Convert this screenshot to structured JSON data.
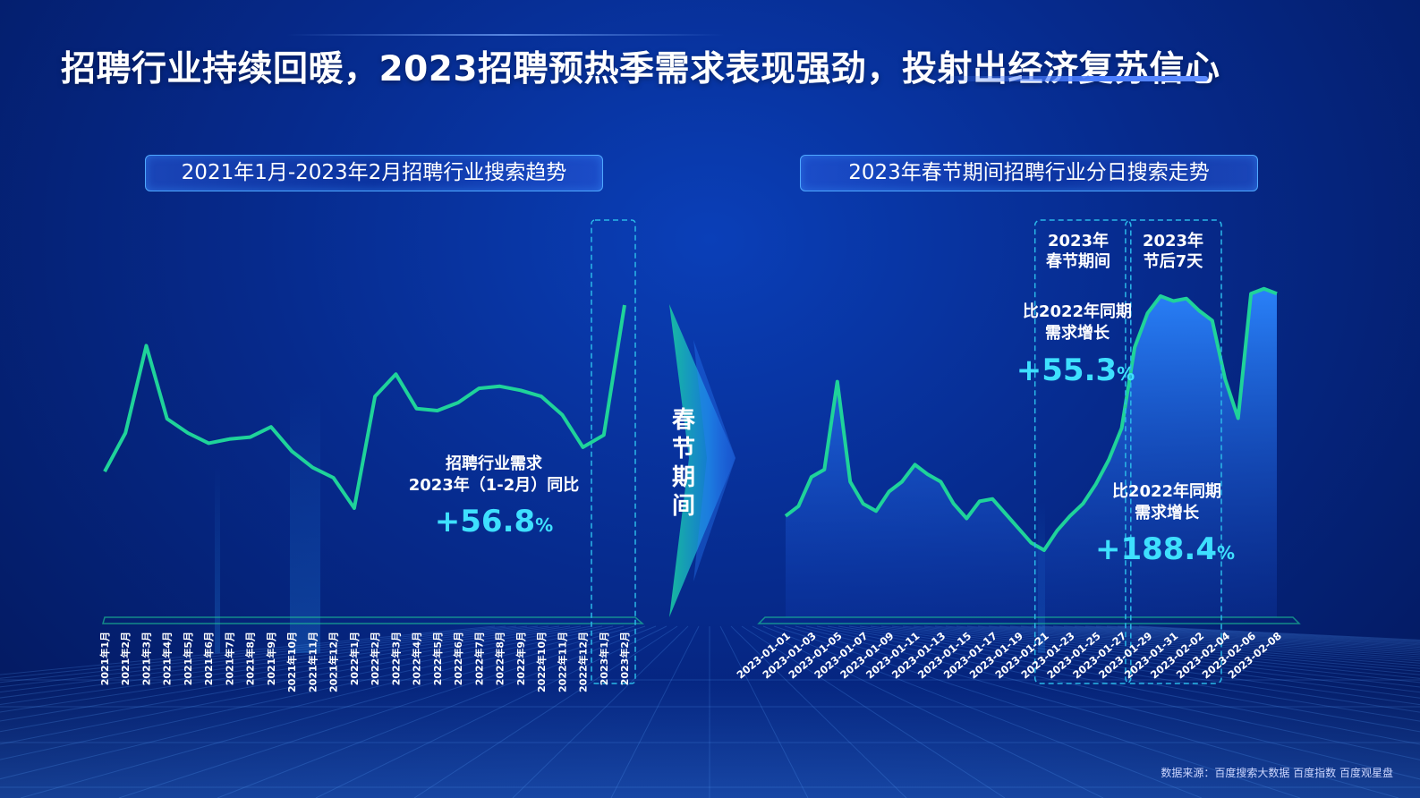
{
  "title": "招聘行业持续回暖，2023招聘预热季需求表现强劲，投射出经济复苏信心",
  "source": "数据来源：百度搜索大数据 百度指数 百度观星盘",
  "center_label": [
    "春",
    "节",
    "期",
    "间"
  ],
  "left_panel": {
    "title": "2021年1月-2023年2月招聘行业搜索趋势",
    "annotation": {
      "line1": "招聘行业需求",
      "line2": "2023年（1-2月）同比",
      "value": "+56.8",
      "unit": "%"
    }
  },
  "right_panel": {
    "title": "2023年春节期间招聘行业分日搜索走势",
    "box1_label": [
      "2023年",
      "春节期间"
    ],
    "box2_label": [
      "2023年",
      "节后7天"
    ],
    "annotation1": {
      "line1": "比2022年同期",
      "line2": "需求增长",
      "value": "+55.3",
      "unit": "%"
    },
    "annotation2": {
      "line1": "比2022年同期",
      "line2": "需求增长",
      "value": "+188.4",
      "unit": "%"
    }
  },
  "colors": {
    "line": "#1fd39a",
    "accent_text": "#3ee0ff",
    "dashed_box": "#2bb8e8"
  },
  "chart_data": [
    {
      "type": "line",
      "categories": [
        "2021年1月",
        "2021年2月",
        "2021年3月",
        "2021年4月",
        "2021年5月",
        "2021年6月",
        "2021年7月",
        "2021年8月",
        "2021年9月",
        "2021年10月",
        "2021年11月",
        "2021年12月",
        "2022年1月",
        "2022年2月",
        "2022年3月",
        "2022年4月",
        "2022年5月",
        "2022年6月",
        "2022年7月",
        "2022年8月",
        "2022年9月",
        "2022年10月",
        "2022年11月",
        "2022年12月",
        "2023年1月",
        "2023年2月"
      ],
      "values": [
        18,
        37,
        80,
        44,
        37,
        32,
        34,
        35,
        40,
        28,
        20,
        15,
        0,
        55,
        66,
        49,
        48,
        52,
        59,
        60,
        58,
        55,
        46,
        30,
        36,
        100
      ],
      "ylim": [
        -5,
        110
      ],
      "highlight": [
        "2023年1月",
        "2023年2月"
      ]
    },
    {
      "type": "area",
      "x": [
        "2023-01-01",
        "2023-01-02",
        "2023-01-03",
        "2023-01-04",
        "2023-01-05",
        "2023-01-06",
        "2023-01-07",
        "2023-01-08",
        "2023-01-09",
        "2023-01-10",
        "2023-01-11",
        "2023-01-12",
        "2023-01-13",
        "2023-01-14",
        "2023-01-15",
        "2023-01-16",
        "2023-01-17",
        "2023-01-18",
        "2023-01-19",
        "2023-01-20",
        "2023-01-21",
        "2023-01-22",
        "2023-01-23",
        "2023-01-24",
        "2023-01-25",
        "2023-01-26",
        "2023-01-27",
        "2023-01-28",
        "2023-01-29",
        "2023-01-30",
        "2023-01-31",
        "2023-02-01",
        "2023-02-02",
        "2023-02-03",
        "2023-02-04",
        "2023-02-05",
        "2023-02-06",
        "2023-02-07",
        "2023-02-08"
      ],
      "tick_labels": [
        "2023-01-01",
        "2023-01-03",
        "2023-01-05",
        "2023-01-07",
        "2023-01-09",
        "2023-01-11",
        "2023-01-13",
        "2023-01-15",
        "2023-01-17",
        "2023-01-19",
        "2023-01-21",
        "2023-01-23",
        "2023-01-25",
        "2023-01-27",
        "2023-01-29",
        "2023-01-31",
        "2023-02-02",
        "2023-02-04",
        "2023-02-06",
        "2023-02-08"
      ],
      "values": [
        14,
        18,
        30,
        33,
        69,
        28,
        19,
        16,
        24,
        28,
        35,
        31,
        28,
        19,
        13,
        20,
        21,
        15,
        9,
        3,
        0,
        8,
        14,
        19,
        27,
        37,
        50,
        83,
        97,
        104,
        102,
        103,
        98,
        94,
        70,
        54,
        105,
        107,
        105
      ],
      "ylim": [
        -30,
        125
      ],
      "spans": [
        {
          "name": "2023年春节期间",
          "from": "2023-01-21",
          "to": "2023-01-27"
        },
        {
          "name": "2023年节后7天",
          "from": "2023-01-28",
          "to": "2023-02-03"
        }
      ]
    }
  ]
}
